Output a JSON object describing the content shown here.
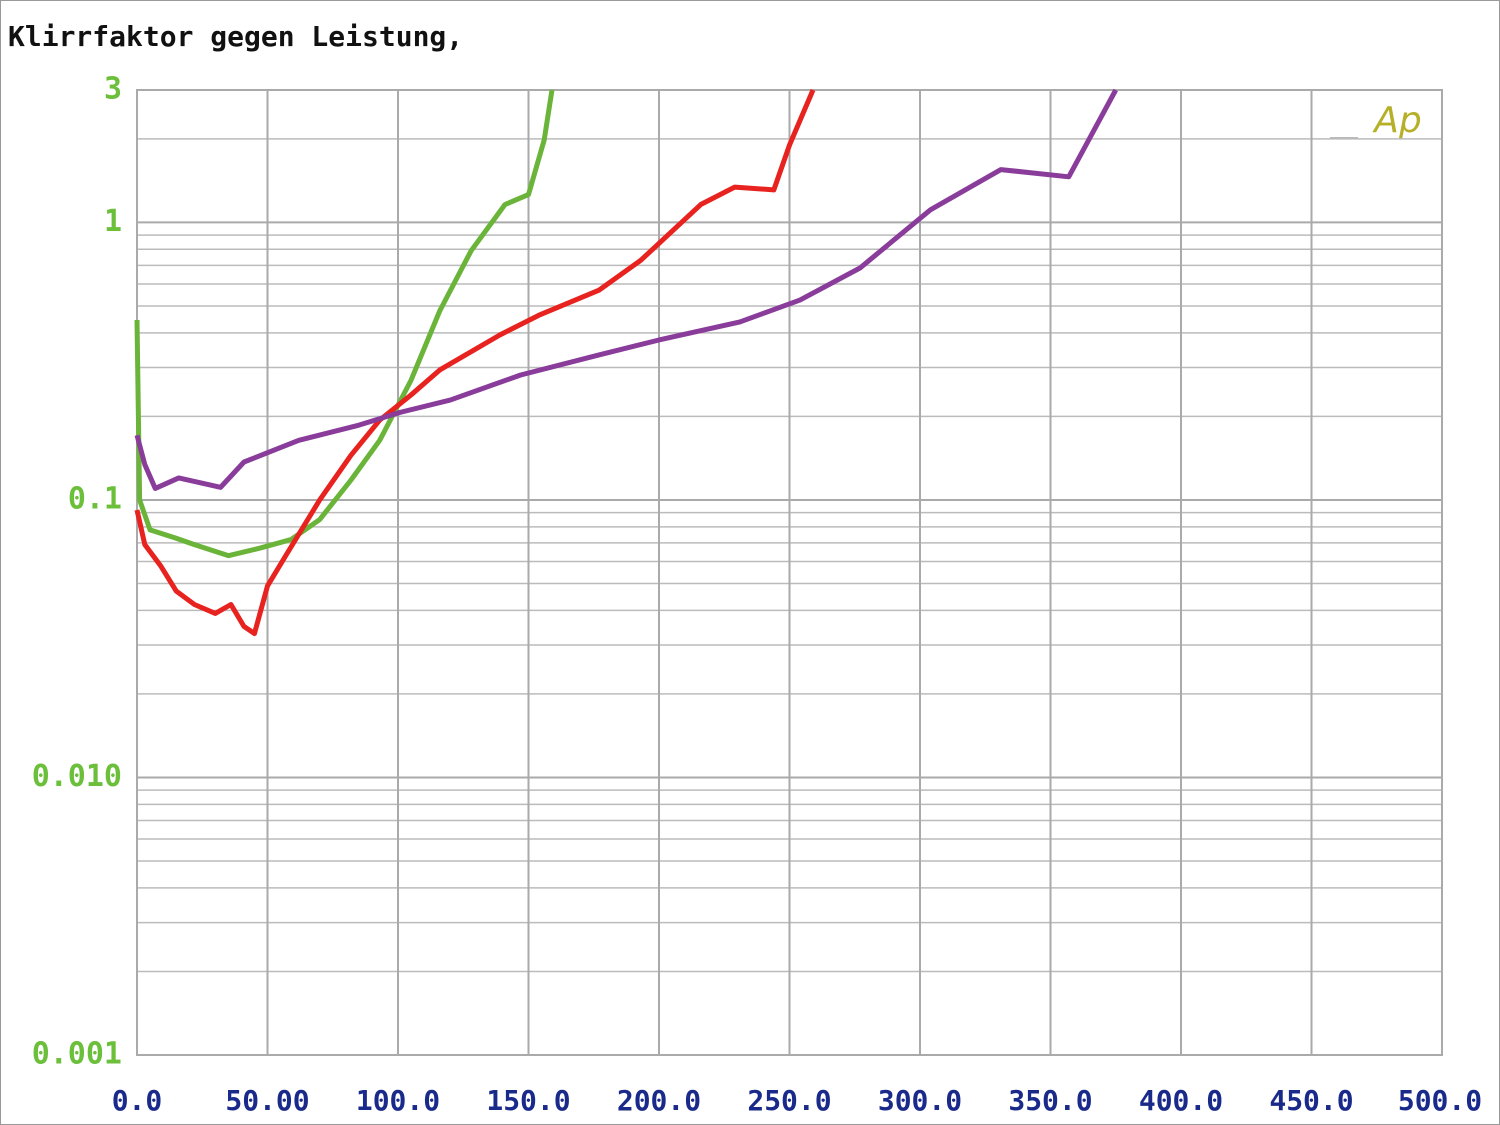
{
  "chart_data": {
    "type": "line",
    "title": "Klirrfaktor gegen Leistung,",
    "logo": "Ap",
    "xlim": [
      0,
      500
    ],
    "xticks": [
      {
        "value": 0,
        "label": "0.0"
      },
      {
        "value": 50,
        "label": "50.00"
      },
      {
        "value": 100,
        "label": "100.0"
      },
      {
        "value": 150,
        "label": "150.0"
      },
      {
        "value": 200,
        "label": "200.0"
      },
      {
        "value": 250,
        "label": "250.0"
      },
      {
        "value": 300,
        "label": "300.0"
      },
      {
        "value": 350,
        "label": "350.0"
      },
      {
        "value": 400,
        "label": "400.0"
      },
      {
        "value": 450,
        "label": "450.0"
      },
      {
        "value": 500,
        "label": "500.0"
      }
    ],
    "ylim": [
      0.001,
      3
    ],
    "ylog": true,
    "yticks": [
      3,
      1,
      0.1,
      {
        "value": 0.01,
        "label": "0.010"
      },
      0.001
    ],
    "yticks_minor": [
      0.002,
      0.003,
      0.004,
      0.005,
      0.006,
      0.007,
      0.008,
      0.009,
      0.02,
      0.03,
      0.04,
      0.05,
      0.06,
      0.07,
      0.08,
      0.09,
      0.2,
      0.3,
      0.4,
      0.5,
      0.6,
      0.7,
      0.8,
      0.9,
      2
    ],
    "grid": true,
    "series": [
      {
        "color": "#6ab43a",
        "x": [
          0,
          1,
          5,
          14.6,
          22,
          35,
          47,
          59,
          70,
          82,
          93,
          105,
          116,
          128,
          141,
          150,
          156,
          159
        ],
        "values": [
          0.445,
          0.1,
          0.078,
          0.073,
          0.069,
          0.063,
          0.067,
          0.072,
          0.085,
          0.118,
          0.164,
          0.27,
          0.48,
          0.79,
          1.16,
          1.26,
          1.98,
          3
        ]
      },
      {
        "color": "#e8221e",
        "x": [
          0,
          3,
          9,
          15,
          22,
          30,
          36,
          41,
          45,
          50,
          57,
          70,
          82,
          93,
          105,
          116,
          139,
          154,
          177,
          193,
          216,
          229,
          244,
          250,
          259
        ],
        "values": [
          0.092,
          0.069,
          0.058,
          0.047,
          0.042,
          0.039,
          0.042,
          0.035,
          0.033,
          0.049,
          0.063,
          0.1,
          0.145,
          0.194,
          0.239,
          0.294,
          0.393,
          0.463,
          0.57,
          0.73,
          1.16,
          1.34,
          1.31,
          1.9,
          3
        ]
      },
      {
        "color": "#8a3c9a",
        "x": [
          0,
          3,
          7,
          16,
          32,
          41,
          62,
          85,
          101,
          120,
          147,
          177,
          200,
          231,
          254,
          277,
          304,
          331,
          357,
          375
        ],
        "values": [
          0.171,
          0.134,
          0.11,
          0.12,
          0.111,
          0.137,
          0.164,
          0.186,
          0.207,
          0.229,
          0.282,
          0.333,
          0.377,
          0.438,
          0.525,
          0.685,
          1.11,
          1.55,
          1.46,
          3
        ]
      }
    ]
  }
}
